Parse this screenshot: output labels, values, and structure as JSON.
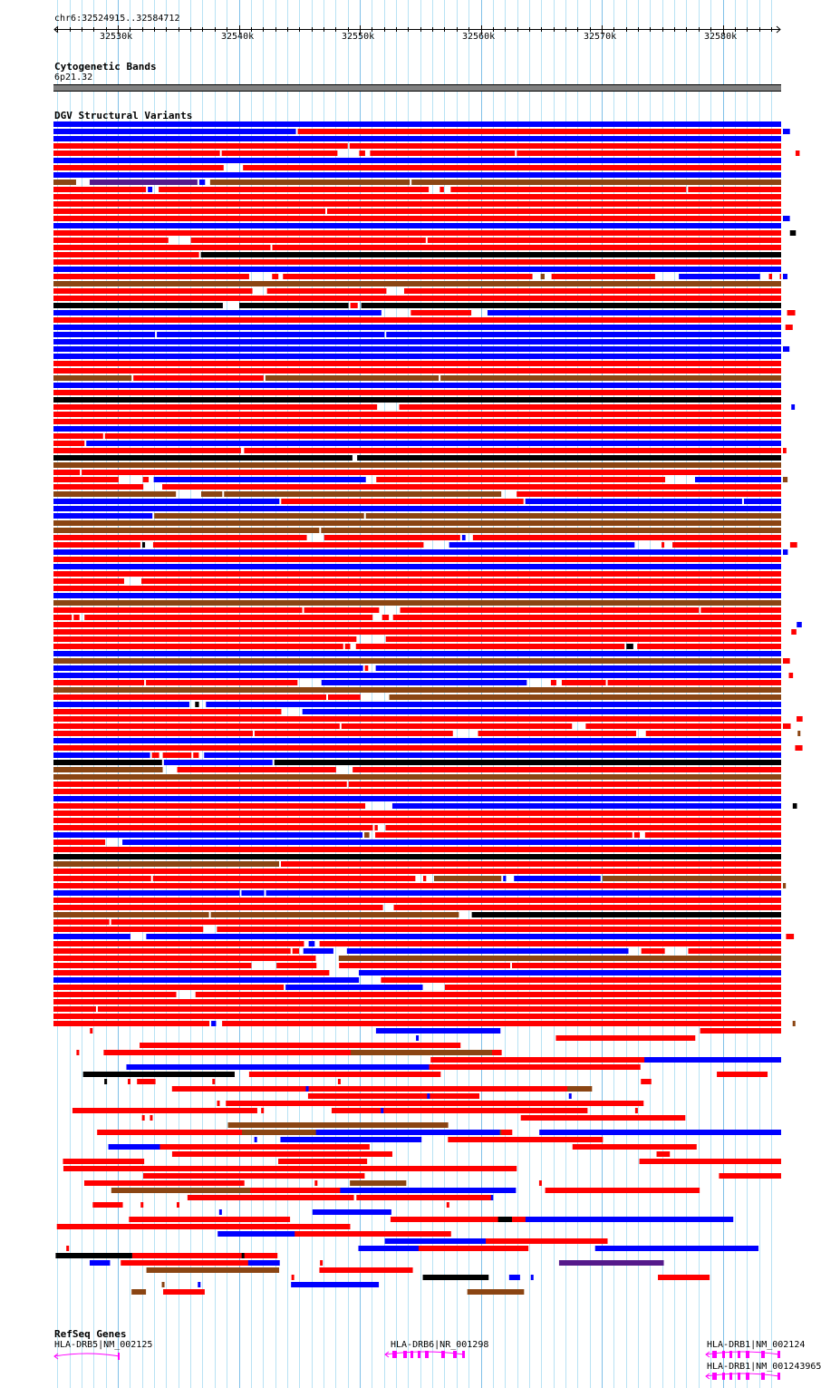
{
  "location": "chr6:32524915..32584712",
  "ruler": {
    "ticks": [
      "32530k",
      "32540k",
      "32550k",
      "32560k",
      "32570k",
      "32580k"
    ]
  },
  "tracks": {
    "cytoband": {
      "title": "Cytogenetic Bands",
      "band": "6p21.32",
      "color": "#808080"
    },
    "dgv": {
      "title": "DGV Structural Variants",
      "colors": {
        "loss": "#ff0000",
        "gain": "#0000ff",
        "inversion": "#8b4513",
        "complex": "#000000",
        "other": "#551a8b"
      }
    },
    "refseq": {
      "title": "RefSeq Genes",
      "color": "#ff00ff",
      "genes": [
        {
          "label": "HLA-DRB5|NM_002125"
        },
        {
          "label": "HLA-DRB6|NR_001298"
        },
        {
          "label": "HLA-DRB1|NM_002124"
        },
        {
          "label": "HLA-DRB1|NM_001243965"
        }
      ]
    }
  }
}
